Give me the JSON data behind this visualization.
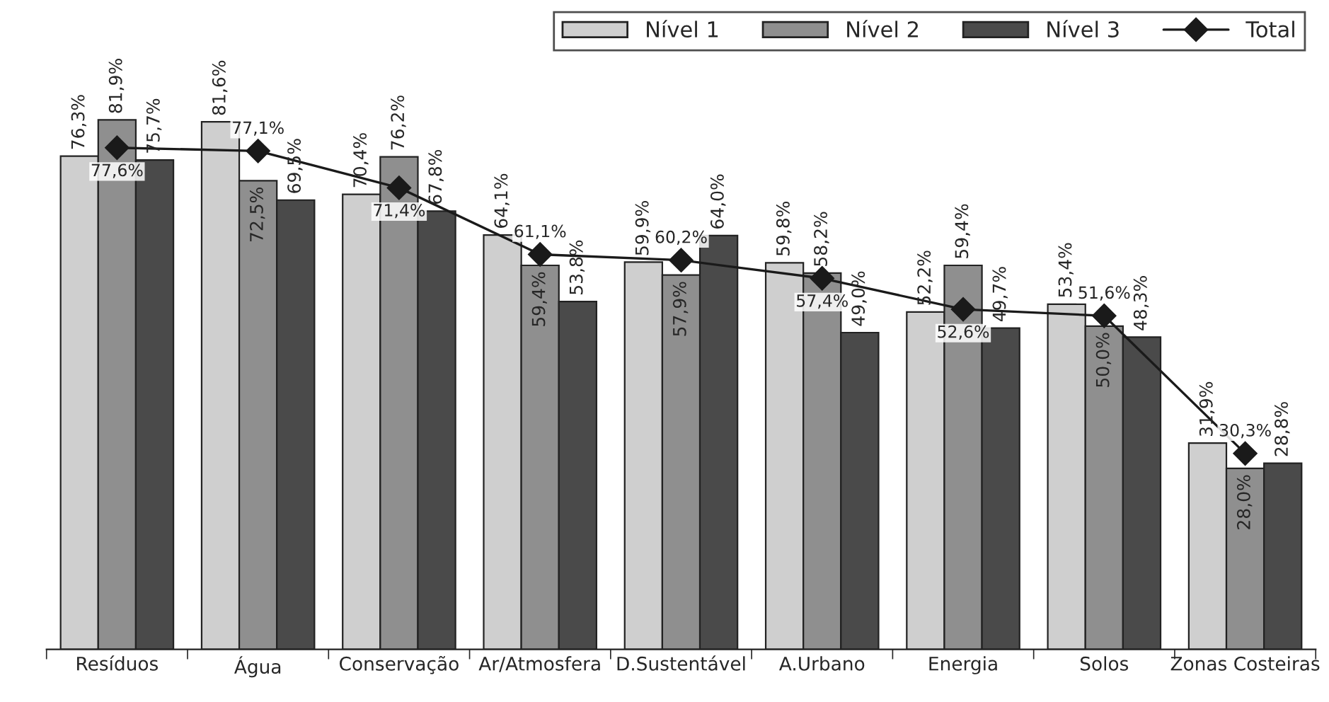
{
  "chart_data": {
    "type": "bar",
    "categories": [
      "Resíduos",
      "Água",
      "Conservação",
      "Ar/Atmosfera",
      "D.Sustentável",
      "A.Urbano",
      "Energia",
      "Solos",
      "Zonas Costeiras"
    ],
    "series": [
      {
        "name": "Nível 1",
        "color": "#cfcfcf",
        "values": [
          76.3,
          81.6,
          70.4,
          64.1,
          59.9,
          59.8,
          52.2,
          53.4,
          31.9
        ],
        "value_labels": [
          "76,3%",
          "81,6%",
          "70,4%",
          "64,1%",
          "59,9%",
          "59,8%",
          "52,2%",
          "53,4%",
          "31,9%"
        ]
      },
      {
        "name": "Nível 2",
        "color": "#8f8f8f",
        "values": [
          81.9,
          72.5,
          76.2,
          59.4,
          57.9,
          58.2,
          59.4,
          50.0,
          28.0
        ],
        "value_labels": [
          "81,9%",
          "72,5%",
          "76,2%",
          "59,4%",
          "57,9%",
          "58,2%",
          "59,4%",
          "50,0%",
          "28,0%"
        ]
      },
      {
        "name": "Nível 3",
        "color": "#4a4a4a",
        "values": [
          75.7,
          69.5,
          67.8,
          53.8,
          64.0,
          49.0,
          49.7,
          48.3,
          28.8
        ],
        "value_labels": [
          "75,7%",
          "69,5%",
          "67,8%",
          "53,8%",
          "64,0%",
          "49,0%",
          "49,7%",
          "48,3%",
          "28,8%"
        ]
      },
      {
        "name": "Total",
        "type": "line",
        "color": "#1a1a1a",
        "marker": "diamond",
        "values": [
          77.6,
          77.1,
          71.4,
          61.1,
          60.2,
          57.4,
          52.6,
          51.6,
          30.3
        ],
        "value_labels": [
          "77,6%",
          "77,1%",
          "71,4%",
          "61,1%",
          "60,2%",
          "57,4%",
          "52,6%",
          "51,6%",
          "30,3%"
        ]
      }
    ],
    "legend": "top right",
    "grid": false
  }
}
